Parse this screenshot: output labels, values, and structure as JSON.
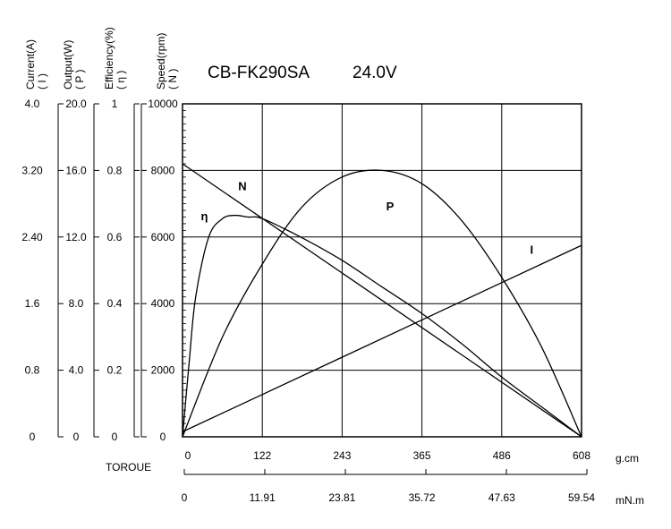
{
  "chart_data": {
    "type": "line",
    "title": "CB-FK290SA",
    "voltage_label": "24.0V",
    "grid": true,
    "axes": {
      "current": {
        "label": "Current(A)",
        "symbol": "( I )",
        "ticks": [
          "4.0",
          "3.20",
          "2.40",
          "1.6",
          "0.8",
          "0"
        ],
        "range": [
          0,
          4.0
        ]
      },
      "output": {
        "label": "Output(W)",
        "symbol": "( P )",
        "ticks": [
          "20.0",
          "16.0",
          "12.0",
          "8.0",
          "4.0",
          "0"
        ],
        "range": [
          0,
          20.0
        ]
      },
      "efficiency": {
        "label": "Efficiency(%)",
        "symbol": "( η )",
        "ticks": [
          "1",
          "0.8",
          "0.6",
          "0.4",
          "0.2",
          "0"
        ],
        "range": [
          0,
          1
        ]
      },
      "speed": {
        "label": "Speed(rpm)",
        "symbol": "( N )",
        "ticks": [
          "10000",
          "8000",
          "6000",
          "4000",
          "2000",
          "0"
        ],
        "range": [
          0,
          10000
        ]
      }
    },
    "torque_label": "TOROUE",
    "torque_gcm": {
      "ticks": [
        "0",
        "122",
        "243",
        "365",
        "486",
        "608"
      ],
      "unit": "g.cm",
      "range": [
        0,
        608
      ]
    },
    "torque_mnm": {
      "ticks": [
        "0",
        "11.91",
        "23.81",
        "35.72",
        "47.63",
        "59.54"
      ],
      "unit": "mN.m"
    },
    "series": [
      {
        "name": "N",
        "axis": "speed",
        "x": [
          0,
          608
        ],
        "y": [
          8200,
          0
        ]
      },
      {
        "name": "I",
        "axis": "current",
        "x": [
          0,
          608
        ],
        "y": [
          0.06,
          2.3
        ]
      },
      {
        "name": "P",
        "axis": "output",
        "x": [
          0,
          61,
          122,
          182,
          243,
          304,
          365,
          425,
          486,
          547,
          608
        ],
        "y": [
          0,
          6.0,
          10.4,
          13.8,
          15.6,
          16.0,
          15.2,
          13.0,
          9.6,
          5.4,
          0
        ]
      },
      {
        "name": "η",
        "axis": "efficiency",
        "x": [
          0,
          10,
          20,
          40,
          61,
          80,
          100,
          122,
          180,
          243,
          304,
          365,
          425,
          486,
          547,
          608
        ],
        "y": [
          0,
          0.22,
          0.42,
          0.6,
          0.655,
          0.665,
          0.66,
          0.655,
          0.6,
          0.53,
          0.45,
          0.37,
          0.28,
          0.18,
          0.09,
          0
        ]
      }
    ]
  }
}
